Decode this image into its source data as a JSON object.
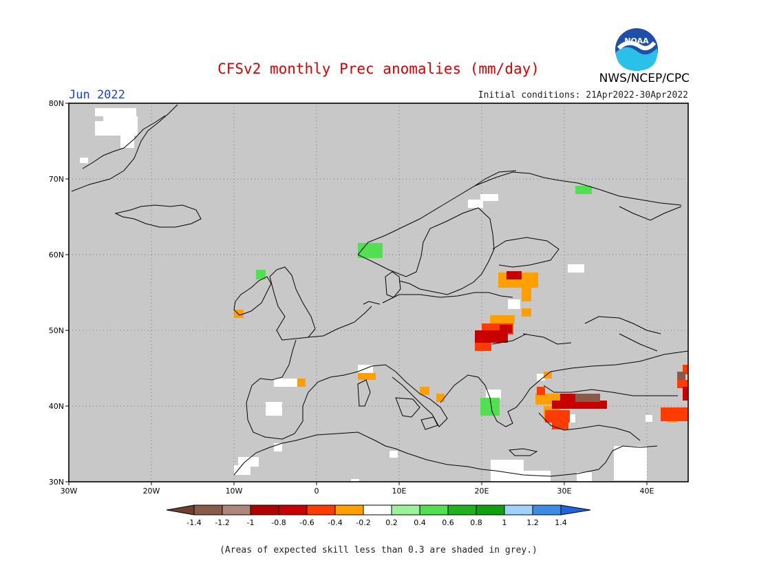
{
  "header": {
    "title": "CFSv2 monthly Prec anomalies (mm/day)",
    "month": "Jun 2022",
    "initial_conditions": "Initial conditions: 21Apr2022-30Apr2022",
    "agency": "NWS/NCEP/CPC",
    "logo_text": "NOAA"
  },
  "map": {
    "lat_labels": [
      "80N",
      "70N",
      "60N",
      "50N",
      "40N",
      "30N"
    ],
    "lon_labels": [
      "30W",
      "20W",
      "10W",
      "0",
      "10E",
      "20E",
      "30E",
      "40E"
    ],
    "extent": {
      "lon_min": -30,
      "lon_max": 45,
      "lat_min": 30,
      "lat_max": 80
    },
    "background_color": "#c8c8c8",
    "coastline_color": "#000000"
  },
  "colorbar": {
    "tick_labels": [
      "-1.4",
      "-1.2",
      "-1",
      "-0.8",
      "-0.6",
      "-0.4",
      "-0.2",
      "0.2",
      "0.4",
      "0.6",
      "0.8",
      "1",
      "1.2",
      "1.4"
    ],
    "colors": [
      "#6e4030",
      "#8a5a48",
      "#b0867a",
      "#b00000",
      "#c80000",
      "#ff3c00",
      "#ffa000",
      "#ffffff",
      "#9af39a",
      "#50e050",
      "#20b020",
      "#10a010",
      "#a0d2fa",
      "#3c8ce6",
      "#1e64dc"
    ]
  },
  "footnote": "(Areas of expected skill less than 0.3 are shaded in grey.)"
}
